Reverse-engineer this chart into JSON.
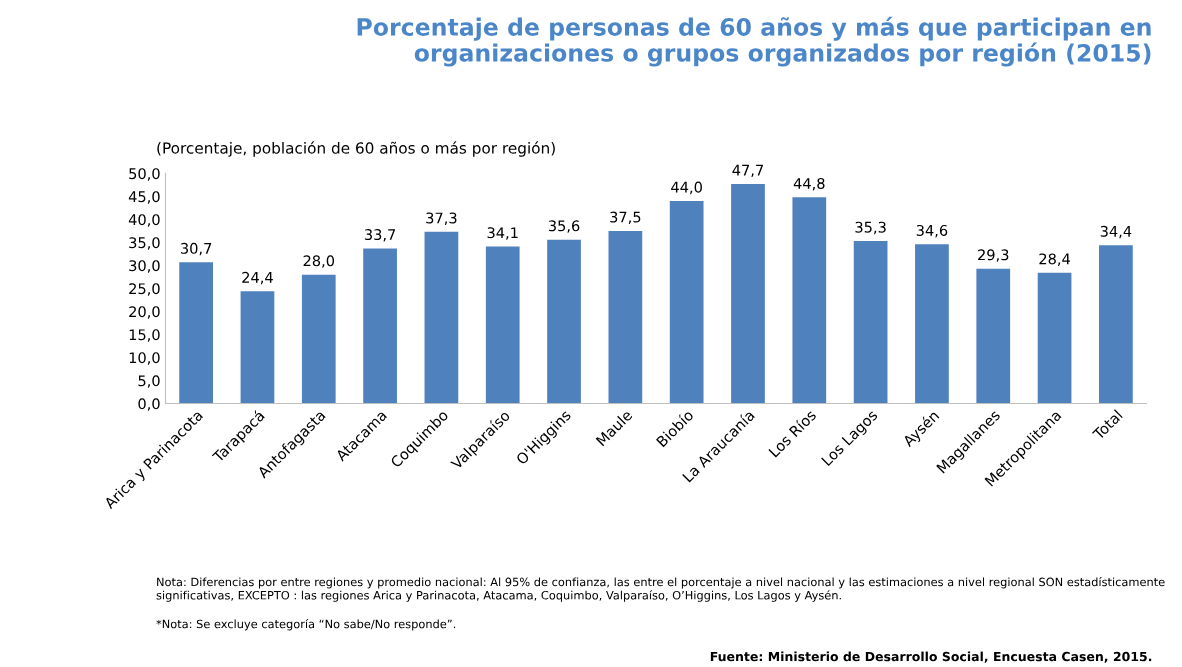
{
  "chart_data": {
    "type": "bar",
    "title": "Porcentaje de personas de 60 años y más que participan en\norganizaciones o grupos organizados por región (2015)",
    "subtitle": "(Porcentaje, población de 60 años o más por región)",
    "categories": [
      "Arica y Parinacota",
      "Tarapacá",
      "Antofagasta",
      "Atacama",
      "Coquimbo",
      "Valparaíso",
      "O'Higgins",
      "Maule",
      "Biobío",
      "La Araucanía",
      "Los Ríos",
      "Los Lagos",
      "Aysén",
      "Magallanes",
      "Metropolitana",
      "Total"
    ],
    "values": [
      30.7,
      24.4,
      28.0,
      33.7,
      37.3,
      34.1,
      35.6,
      37.5,
      44.0,
      47.7,
      44.8,
      35.3,
      34.6,
      29.3,
      28.4,
      34.4
    ],
    "value_labels": [
      "30,7",
      "24,4",
      "28,0",
      "33,7",
      "37,3",
      "34,1",
      "35,6",
      "37,5",
      "44,0",
      "47,7",
      "44,8",
      "35,3",
      "34,6",
      "29,3",
      "28,4",
      "34,4"
    ],
    "color": "#4f81bd",
    "ylim": [
      0,
      50
    ],
    "yticks": [
      {
        "value": 0,
        "label": "0,0"
      },
      {
        "value": 5,
        "label": "5,0"
      },
      {
        "value": 10,
        "label": "10,0"
      },
      {
        "value": 15,
        "label": "15,0"
      },
      {
        "value": 20,
        "label": "20,0"
      },
      {
        "value": 25,
        "label": "25,0"
      },
      {
        "value": 30,
        "label": "30,0"
      },
      {
        "value": 35,
        "label": "35,0"
      },
      {
        "value": 40,
        "label": "40,0"
      },
      {
        "value": 45,
        "label": "45,0"
      },
      {
        "value": 50,
        "label": "50,0"
      }
    ],
    "grid": false,
    "legend": false,
    "annotations": [
      "Nota: Diferencias por entre regiones y promedio nacional: Al 95% de confianza, las entre el porcentaje a nivel nacional y las estimaciones a nivel regional SON estadísticamente significativas, EXCEPTO : las regiones Arica y Parinacota, Atacama, Coquimbo, Valparaíso, O’Higgins, Los Lagos y Aysén.",
      "*Nota: Se excluye categoría “No sabe/No responde”.",
      "Fuente: Ministerio de Desarrollo Social, Encuesta Casen, 2015."
    ]
  }
}
